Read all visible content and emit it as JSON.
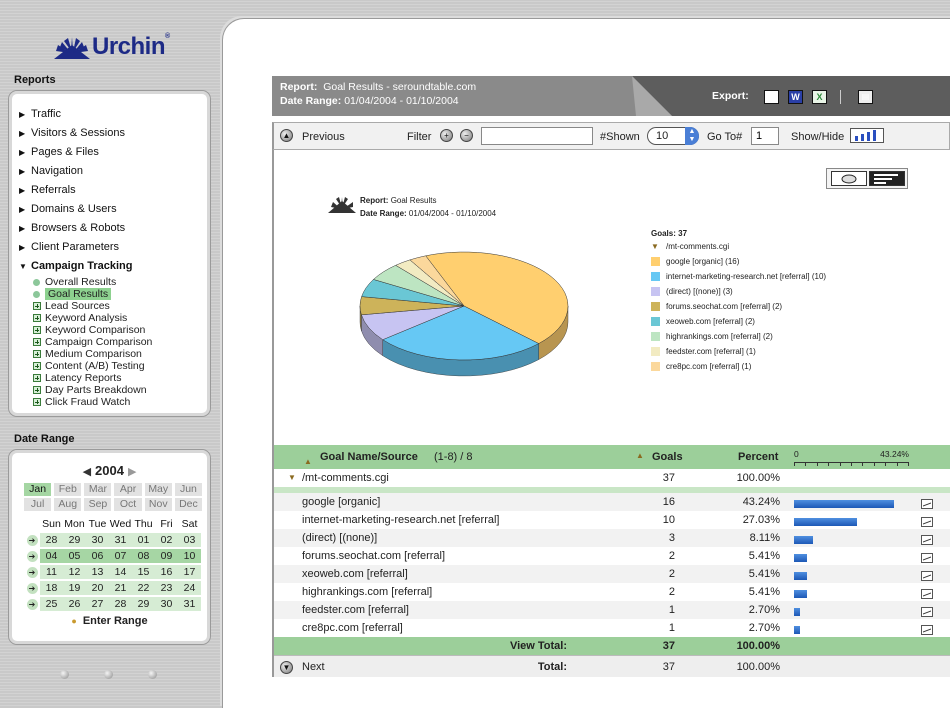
{
  "brand": {
    "name": "Urchin",
    "tm": "®"
  },
  "sidebar": {
    "reports_heading": "Reports",
    "nav": [
      {
        "label": "Traffic"
      },
      {
        "label": "Visitors & Sessions"
      },
      {
        "label": "Pages & Files"
      },
      {
        "label": "Navigation"
      },
      {
        "label": "Referrals"
      },
      {
        "label": "Domains & Users"
      },
      {
        "label": "Browsers & Robots"
      },
      {
        "label": "Client Parameters"
      },
      {
        "label": "Campaign Tracking"
      }
    ],
    "campaign_items": [
      {
        "label": "Overall Results"
      },
      {
        "label": "Goal Results"
      },
      {
        "label": "Lead Sources"
      },
      {
        "label": "Keyword Analysis"
      },
      {
        "label": "Keyword Comparison"
      },
      {
        "label": "Campaign Comparison"
      },
      {
        "label": "Medium Comparison"
      },
      {
        "label": "Content (A/B) Testing"
      },
      {
        "label": "Latency Reports"
      },
      {
        "label": "Day Parts Breakdown"
      },
      {
        "label": "Click Fraud Watch"
      }
    ],
    "date_heading": "Date Range",
    "year": "2004",
    "months": [
      "Jan",
      "Feb",
      "Mar",
      "Apr",
      "May",
      "Jun",
      "Jul",
      "Aug",
      "Sep",
      "Oct",
      "Nov",
      "Dec"
    ],
    "weekdays": [
      "Sun",
      "Mon",
      "Tue",
      "Wed",
      "Thu",
      "Fri",
      "Sat"
    ],
    "weeks": [
      [
        "28",
        "29",
        "30",
        "31",
        "01",
        "02",
        "03"
      ],
      [
        "04",
        "05",
        "06",
        "07",
        "08",
        "09",
        "10"
      ],
      [
        "11",
        "12",
        "13",
        "14",
        "15",
        "16",
        "17"
      ],
      [
        "18",
        "19",
        "20",
        "21",
        "22",
        "23",
        "24"
      ],
      [
        "25",
        "26",
        "27",
        "28",
        "29",
        "30",
        "31"
      ]
    ],
    "enter_range": "Enter Range"
  },
  "header": {
    "report_label": "Report:",
    "report_value": "Goal Results - seroundtable.com",
    "range_label": "Date Range:",
    "range_value": "01/04/2004 - 01/10/2004",
    "export_label": "Export:"
  },
  "toolbar": {
    "previous": "Previous",
    "filter": "Filter",
    "filter_value": "",
    "shown_label": "#Shown",
    "shown_value": "10",
    "goto_label": "Go To#",
    "goto_value": "1",
    "showhide": "Show/Hide"
  },
  "chart": {
    "report_label": "Report:",
    "report_value": "Goal Results",
    "range_label": "Date Range:",
    "range_value": "01/04/2004 - 01/10/2004",
    "legend_title": "Goals: 37",
    "legend_parent": "/mt-comments.cgi"
  },
  "chart_data": {
    "type": "pie",
    "title": "Goal Results",
    "total": 37,
    "categories": [
      "google [organic]",
      "internet-marketing-research.net [referral]",
      "(direct) [(none)]",
      "forums.seochat.com [referral]",
      "xeoweb.com [referral]",
      "highrankings.com [referral]",
      "feedster.com [referral]",
      "cre8pc.com [referral]"
    ],
    "values": [
      16,
      10,
      3,
      2,
      2,
      2,
      1,
      1
    ],
    "colors": [
      "#ffcf6f",
      "#66c8f4",
      "#c7c4f2",
      "#cdb35a",
      "#6ac7d5",
      "#bde5c2",
      "#f2ebc2",
      "#fbd89c"
    ]
  },
  "table": {
    "col_name": "Goal Name/Source",
    "range_info": "(1-8) / 8",
    "col_goals": "Goals",
    "col_percent": "Percent",
    "scale_min": "0",
    "scale_max": "43.24%",
    "parent": {
      "name": "/mt-comments.cgi",
      "goals": "37",
      "percent": "100.00%"
    },
    "rows": [
      {
        "name": "google [organic]",
        "goals": "16",
        "percent": "43.24%",
        "fraction": 0.4324
      },
      {
        "name": "internet-marketing-research.net [referral]",
        "goals": "10",
        "percent": "27.03%",
        "fraction": 0.2703
      },
      {
        "name": "(direct) [(none)]",
        "goals": "3",
        "percent": "8.11%",
        "fraction": 0.0811
      },
      {
        "name": "forums.seochat.com [referral]",
        "goals": "2",
        "percent": "5.41%",
        "fraction": 0.0541
      },
      {
        "name": "xeoweb.com [referral]",
        "goals": "2",
        "percent": "5.41%",
        "fraction": 0.0541
      },
      {
        "name": "highrankings.com [referral]",
        "goals": "2",
        "percent": "5.41%",
        "fraction": 0.0541
      },
      {
        "name": "feedster.com [referral]",
        "goals": "1",
        "percent": "2.70%",
        "fraction": 0.027
      },
      {
        "name": "cre8pc.com [referral]",
        "goals": "1",
        "percent": "2.70%",
        "fraction": 0.027
      }
    ],
    "view_total_label": "View Total:",
    "view_total_goals": "37",
    "view_total_percent": "100.00%",
    "next": "Next",
    "total_label": "Total:",
    "total_goals": "37",
    "total_percent": "100.00%"
  }
}
